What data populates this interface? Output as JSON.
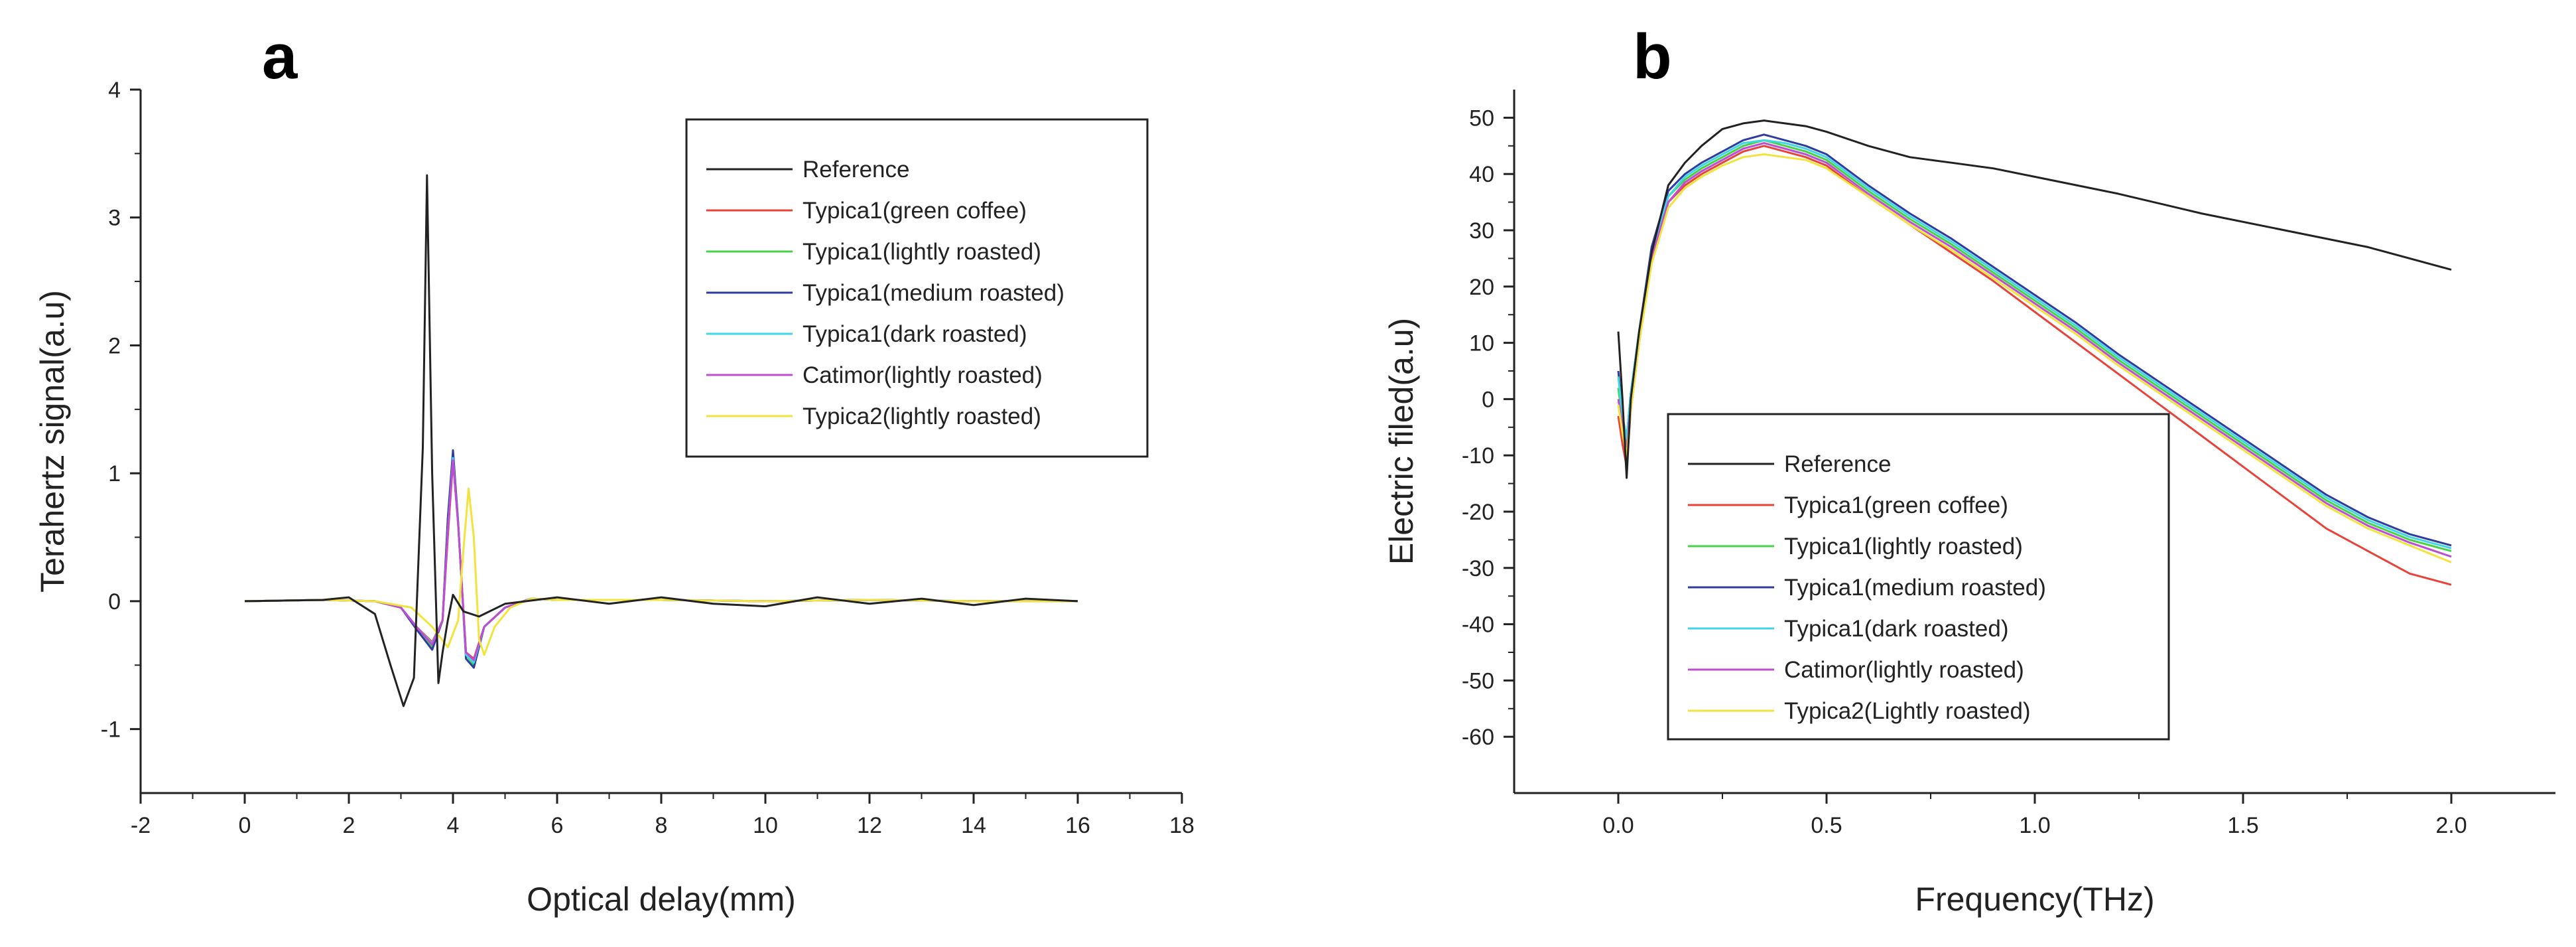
{
  "figure": {
    "panels": [
      {
        "letter": "a"
      },
      {
        "letter": "b"
      }
    ]
  },
  "chart_data": [
    {
      "type": "line",
      "panel": "a",
      "title": "",
      "xlabel": "Optical delay(mm)",
      "ylabel": "Terahertz signal(a.u)",
      "xlim": [
        -2,
        18
      ],
      "ylim": [
        -1.5,
        4
      ],
      "xticks": [
        -2,
        0,
        2,
        4,
        6,
        8,
        10,
        12,
        14,
        16,
        18
      ],
      "yticks": [
        -1,
        0,
        1,
        2,
        3,
        4
      ],
      "legend_position": "top-right",
      "series": [
        {
          "name": "Reference",
          "color": "#222222",
          "x": [
            0,
            1.5,
            2.0,
            2.5,
            2.8,
            3.05,
            3.25,
            3.42,
            3.5,
            3.6,
            3.72,
            3.8,
            3.9,
            4.0,
            4.2,
            4.5,
            5.0,
            6,
            7,
            8,
            9,
            10,
            11,
            12,
            13,
            14,
            15,
            16
          ],
          "y": [
            0,
            0.01,
            0.03,
            -0.1,
            -0.5,
            -0.82,
            -0.6,
            1.2,
            3.33,
            1.0,
            -0.64,
            -0.4,
            -0.15,
            0.05,
            -0.08,
            -0.12,
            -0.02,
            0.03,
            -0.02,
            0.03,
            -0.02,
            -0.04,
            0.03,
            -0.02,
            0.02,
            -0.03,
            0.02,
            0.0
          ]
        },
        {
          "name": "Typica1(green coffee)",
          "color": "#e8433a",
          "x": [
            0,
            1.5,
            2.5,
            3.0,
            3.3,
            3.6,
            3.8,
            3.9,
            4.0,
            4.1,
            4.25,
            4.4,
            4.6,
            5.0,
            5.5,
            6,
            8,
            10,
            12,
            14,
            16
          ],
          "y": [
            0,
            0.01,
            0.0,
            -0.05,
            -0.2,
            -0.32,
            -0.15,
            0.5,
            1.1,
            0.6,
            -0.4,
            -0.45,
            -0.2,
            -0.05,
            0.02,
            0.01,
            0.01,
            0.0,
            0.01,
            0.0,
            0.0
          ]
        },
        {
          "name": "Typica1(lightly roasted)",
          "color": "#46d446",
          "x": [
            0,
            1.5,
            2.5,
            3.0,
            3.3,
            3.6,
            3.8,
            3.9,
            4.0,
            4.1,
            4.25,
            4.4,
            4.6,
            5.0,
            5.5,
            6,
            8,
            10,
            12,
            14,
            16
          ],
          "y": [
            0,
            0.01,
            0.0,
            -0.05,
            -0.2,
            -0.36,
            -0.15,
            0.6,
            1.15,
            0.6,
            -0.42,
            -0.5,
            -0.2,
            -0.05,
            0.02,
            0.01,
            0.01,
            0.0,
            0.01,
            0.0,
            0.0
          ]
        },
        {
          "name": "Typica1(medium roasted)",
          "color": "#2e3ba3",
          "x": [
            0,
            1.5,
            2.5,
            3.0,
            3.3,
            3.6,
            3.8,
            3.9,
            4.0,
            4.1,
            4.25,
            4.4,
            4.6,
            5.0,
            5.5,
            6,
            8,
            10,
            12,
            14,
            16
          ],
          "y": [
            0,
            0.01,
            0.0,
            -0.05,
            -0.22,
            -0.38,
            -0.15,
            0.65,
            1.18,
            0.62,
            -0.45,
            -0.52,
            -0.2,
            -0.05,
            0.02,
            0.01,
            0.01,
            0.0,
            0.01,
            0.0,
            0.0
          ]
        },
        {
          "name": "Typica1(dark roasted)",
          "color": "#3fd6e6",
          "x": [
            0,
            1.5,
            2.5,
            3.0,
            3.3,
            3.6,
            3.8,
            3.9,
            4.0,
            4.1,
            4.25,
            4.4,
            4.6,
            5.0,
            5.5,
            6,
            8,
            10,
            12,
            14,
            16
          ],
          "y": [
            0,
            0.01,
            0.0,
            -0.05,
            -0.2,
            -0.33,
            -0.15,
            0.55,
            1.12,
            0.6,
            -0.42,
            -0.48,
            -0.2,
            -0.05,
            0.02,
            0.01,
            0.01,
            0.0,
            0.01,
            0.0,
            0.0
          ]
        },
        {
          "name": "Catimor(lightly roasted)",
          "color": "#c04cd0",
          "x": [
            0,
            1.5,
            2.5,
            3.0,
            3.3,
            3.6,
            3.8,
            3.9,
            4.0,
            4.1,
            4.25,
            4.4,
            4.6,
            5.0,
            5.5,
            6,
            8,
            10,
            12,
            14,
            16
          ],
          "y": [
            0,
            0.01,
            0.0,
            -0.05,
            -0.2,
            -0.34,
            -0.15,
            0.55,
            1.1,
            0.6,
            -0.4,
            -0.46,
            -0.2,
            -0.05,
            0.02,
            0.01,
            0.01,
            0.0,
            0.01,
            0.0,
            0.0
          ]
        },
        {
          "name": "Typica2(lightly roasted)",
          "color": "#f2e43c",
          "x": [
            0,
            1.5,
            2.5,
            3.2,
            3.6,
            3.9,
            4.1,
            4.2,
            4.3,
            4.4,
            4.5,
            4.6,
            4.8,
            5.1,
            5.5,
            6,
            8,
            10,
            12,
            14,
            16
          ],
          "y": [
            0,
            0.01,
            0.0,
            -0.05,
            -0.2,
            -0.36,
            -0.15,
            0.4,
            0.88,
            0.5,
            -0.3,
            -0.42,
            -0.2,
            -0.05,
            0.02,
            0.01,
            0.01,
            0.0,
            0.01,
            0.0,
            0.0
          ]
        }
      ]
    },
    {
      "type": "line",
      "panel": "b",
      "title": "",
      "xlabel": "Frequency(THz)",
      "ylabel": "Electric filed(a.u)",
      "xlim": [
        -0.25,
        2.25
      ],
      "ylim": [
        -70,
        55
      ],
      "xticks": [
        0.0,
        0.5,
        1.0,
        1.5,
        2.0
      ],
      "yticks": [
        -60,
        -50,
        -40,
        -30,
        -20,
        -10,
        0,
        10,
        20,
        30,
        40,
        50
      ],
      "legend_position": "bottom-left",
      "series": [
        {
          "name": "Reference",
          "color": "#222222",
          "x": [
            0.0,
            0.01,
            0.02,
            0.03,
            0.05,
            0.08,
            0.12,
            0.16,
            0.2,
            0.25,
            0.3,
            0.35,
            0.4,
            0.45,
            0.5,
            0.6,
            0.7,
            0.8,
            0.9,
            1.0,
            1.2,
            1.4,
            1.6,
            1.8,
            2.0
          ],
          "y": [
            12,
            0,
            -14,
            0,
            12,
            26,
            38,
            42,
            45,
            48,
            49,
            49.5,
            49,
            48.5,
            47.5,
            45,
            43,
            42,
            41,
            39.5,
            36.5,
            33,
            30,
            27,
            23
          ]
        },
        {
          "name": "Typica1(green coffee)",
          "color": "#e8433a",
          "x": [
            0.0,
            0.01,
            0.02,
            0.03,
            0.05,
            0.08,
            0.12,
            0.16,
            0.2,
            0.25,
            0.3,
            0.35,
            0.4,
            0.45,
            0.5,
            0.6,
            0.7,
            0.8,
            0.9,
            1.0,
            1.1,
            1.2,
            1.3,
            1.4,
            1.5,
            1.6,
            1.7,
            1.8,
            1.9,
            2.0
          ],
          "y": [
            -3,
            -8,
            -12,
            -2,
            10,
            25,
            35,
            38,
            40,
            42,
            44,
            45,
            44,
            43,
            41.5,
            36,
            31,
            26,
            21,
            15.5,
            10,
            4.5,
            -1,
            -6.5,
            -12,
            -17.5,
            -23,
            -27,
            -31,
            -33
          ]
        },
        {
          "name": "Typica1(lightly roasted)",
          "color": "#46d446",
          "x": [
            0.0,
            0.01,
            0.02,
            0.03,
            0.05,
            0.08,
            0.12,
            0.16,
            0.2,
            0.25,
            0.3,
            0.35,
            0.4,
            0.45,
            0.5,
            0.6,
            0.7,
            0.8,
            0.9,
            1.0,
            1.1,
            1.2,
            1.3,
            1.4,
            1.5,
            1.6,
            1.7,
            1.8,
            1.9,
            2.0
          ],
          "y": [
            2,
            -4,
            -8,
            0,
            11,
            26,
            36,
            39,
            41,
            43,
            45,
            46,
            45,
            44,
            42.5,
            37,
            32,
            27.5,
            22.5,
            17.5,
            12.5,
            7,
            2,
            -3,
            -8,
            -13,
            -18,
            -22,
            -25,
            -27
          ]
        },
        {
          "name": "Typica1(medium roasted)",
          "color": "#2e3ba3",
          "x": [
            0.0,
            0.01,
            0.02,
            0.03,
            0.05,
            0.08,
            0.12,
            0.16,
            0.2,
            0.25,
            0.3,
            0.35,
            0.4,
            0.45,
            0.5,
            0.6,
            0.7,
            0.8,
            0.9,
            1.0,
            1.1,
            1.2,
            1.3,
            1.4,
            1.5,
            1.6,
            1.7,
            1.8,
            1.9,
            2.0
          ],
          "y": [
            5,
            -3,
            -7,
            1,
            12,
            27,
            37,
            40,
            42,
            44,
            46,
            47,
            46,
            45,
            43.5,
            38,
            33,
            28.5,
            23.5,
            18.5,
            13.5,
            8,
            3,
            -2,
            -7,
            -12,
            -17,
            -21,
            -24,
            -26
          ]
        },
        {
          "name": "Typica1(dark roasted)",
          "color": "#3fd6e6",
          "x": [
            0.0,
            0.01,
            0.02,
            0.03,
            0.05,
            0.08,
            0.12,
            0.16,
            0.2,
            0.25,
            0.3,
            0.35,
            0.4,
            0.45,
            0.5,
            0.6,
            0.7,
            0.8,
            0.9,
            1.0,
            1.1,
            1.2,
            1.3,
            1.4,
            1.5,
            1.6,
            1.7,
            1.8,
            1.9,
            2.0
          ],
          "y": [
            4,
            -3,
            -7,
            1,
            12,
            26,
            36,
            39.5,
            41.5,
            43.5,
            45.5,
            46,
            45.5,
            44.5,
            43,
            37.5,
            32.5,
            28,
            23,
            18,
            13,
            7.5,
            2.5,
            -2.5,
            -7.5,
            -12.5,
            -17.5,
            -21.5,
            -24.5,
            -26.5
          ]
        },
        {
          "name": "Catimor(lightly roasted)",
          "color": "#c04cd0",
          "x": [
            0.0,
            0.01,
            0.02,
            0.03,
            0.05,
            0.08,
            0.12,
            0.16,
            0.2,
            0.25,
            0.3,
            0.35,
            0.4,
            0.45,
            0.5,
            0.6,
            0.7,
            0.8,
            0.9,
            1.0,
            1.1,
            1.2,
            1.3,
            1.4,
            1.5,
            1.6,
            1.7,
            1.8,
            1.9,
            2.0
          ],
          "y": [
            0,
            -5,
            -9,
            -1,
            11,
            25,
            35,
            38.5,
            40.5,
            42.5,
            44.5,
            45.5,
            44.5,
            43.5,
            42,
            36.5,
            31.5,
            27,
            22,
            17,
            12,
            6.5,
            1.5,
            -3.5,
            -8.5,
            -13.5,
            -18.5,
            -22.5,
            -25.5,
            -28
          ]
        },
        {
          "name": "Typica2(Lightly roasted)",
          "color": "#f2e43c",
          "x": [
            0.0,
            0.01,
            0.02,
            0.03,
            0.05,
            0.08,
            0.12,
            0.16,
            0.2,
            0.25,
            0.3,
            0.35,
            0.4,
            0.45,
            0.5,
            0.6,
            0.7,
            0.8,
            0.9,
            1.0,
            1.1,
            1.2,
            1.3,
            1.4,
            1.5,
            1.6,
            1.7,
            1.8,
            1.9,
            2.0
          ],
          "y": [
            -1,
            -6,
            -10,
            -2,
            10,
            24,
            34,
            37.5,
            39.5,
            41.5,
            43,
            43.5,
            43,
            42.5,
            41,
            36,
            31,
            26.5,
            21.5,
            16.5,
            11.5,
            6,
            1,
            -4,
            -9,
            -14,
            -19,
            -23,
            -26,
            -29
          ]
        }
      ]
    }
  ]
}
